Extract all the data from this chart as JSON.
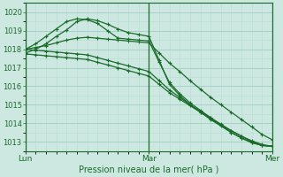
{
  "title": "Pression niveau de la mer( hPa )",
  "background_color": "#cce8e0",
  "grid_color": "#a8d0c8",
  "line_color": "#1a6b2a",
  "ylim": [
    1012.5,
    1020.5
  ],
  "yticks": [
    1013,
    1014,
    1015,
    1016,
    1017,
    1018,
    1019,
    1020
  ],
  "xtick_positions": [
    0,
    24,
    48
  ],
  "xtick_labels": [
    "Lun",
    "Mar",
    "Mer"
  ],
  "total_hours": 48,
  "series": [
    [
      1018.0,
      1018.3,
      1018.7,
      1019.1,
      1019.5,
      1019.65,
      1019.6,
      1019.4,
      1019.0,
      1018.6,
      1018.55,
      1018.5,
      1018.45,
      1017.3,
      1016.2,
      1015.6,
      1015.1,
      1014.7,
      1014.3,
      1013.9,
      1013.5,
      1013.2,
      1012.95,
      1012.8,
      1012.75
    ],
    [
      1017.8,
      1018.0,
      1018.3,
      1018.7,
      1019.05,
      1019.5,
      1019.65,
      1019.55,
      1019.35,
      1019.1,
      1018.9,
      1018.8,
      1018.7,
      1017.4,
      1016.1,
      1015.5,
      1015.0,
      1014.6,
      1014.2,
      1013.85,
      1013.5,
      1013.2,
      1012.95,
      1012.8,
      1012.75
    ],
    [
      1018.0,
      1018.1,
      1018.2,
      1018.35,
      1018.5,
      1018.6,
      1018.65,
      1018.6,
      1018.55,
      1018.5,
      1018.45,
      1018.4,
      1018.35,
      1017.8,
      1017.25,
      1016.8,
      1016.3,
      1015.85,
      1015.4,
      1015.0,
      1014.6,
      1014.2,
      1013.8,
      1013.4,
      1013.1
    ],
    [
      1018.0,
      1017.95,
      1017.9,
      1017.85,
      1017.8,
      1017.75,
      1017.7,
      1017.55,
      1017.4,
      1017.25,
      1017.1,
      1016.95,
      1016.8,
      1016.3,
      1015.8,
      1015.4,
      1015.0,
      1014.65,
      1014.3,
      1013.95,
      1013.6,
      1013.3,
      1013.0,
      1012.8,
      1012.75
    ],
    [
      1017.75,
      1017.7,
      1017.65,
      1017.6,
      1017.55,
      1017.5,
      1017.45,
      1017.3,
      1017.15,
      1017.0,
      1016.85,
      1016.7,
      1016.55,
      1016.1,
      1015.65,
      1015.3,
      1014.95,
      1014.6,
      1014.25,
      1013.9,
      1013.6,
      1013.3,
      1013.05,
      1012.85,
      1012.75
    ]
  ],
  "ytick_fontsize": 6,
  "xtick_fontsize": 6.5,
  "xlabel_fontsize": 7,
  "linewidth": 0.9,
  "marker": "+",
  "markersize": 3.0,
  "markeredgewidth": 0.8,
  "grid_minor_color": "#b8dcd4",
  "spine_color": "#1a6b2a",
  "spine_linewidth": 0.8
}
